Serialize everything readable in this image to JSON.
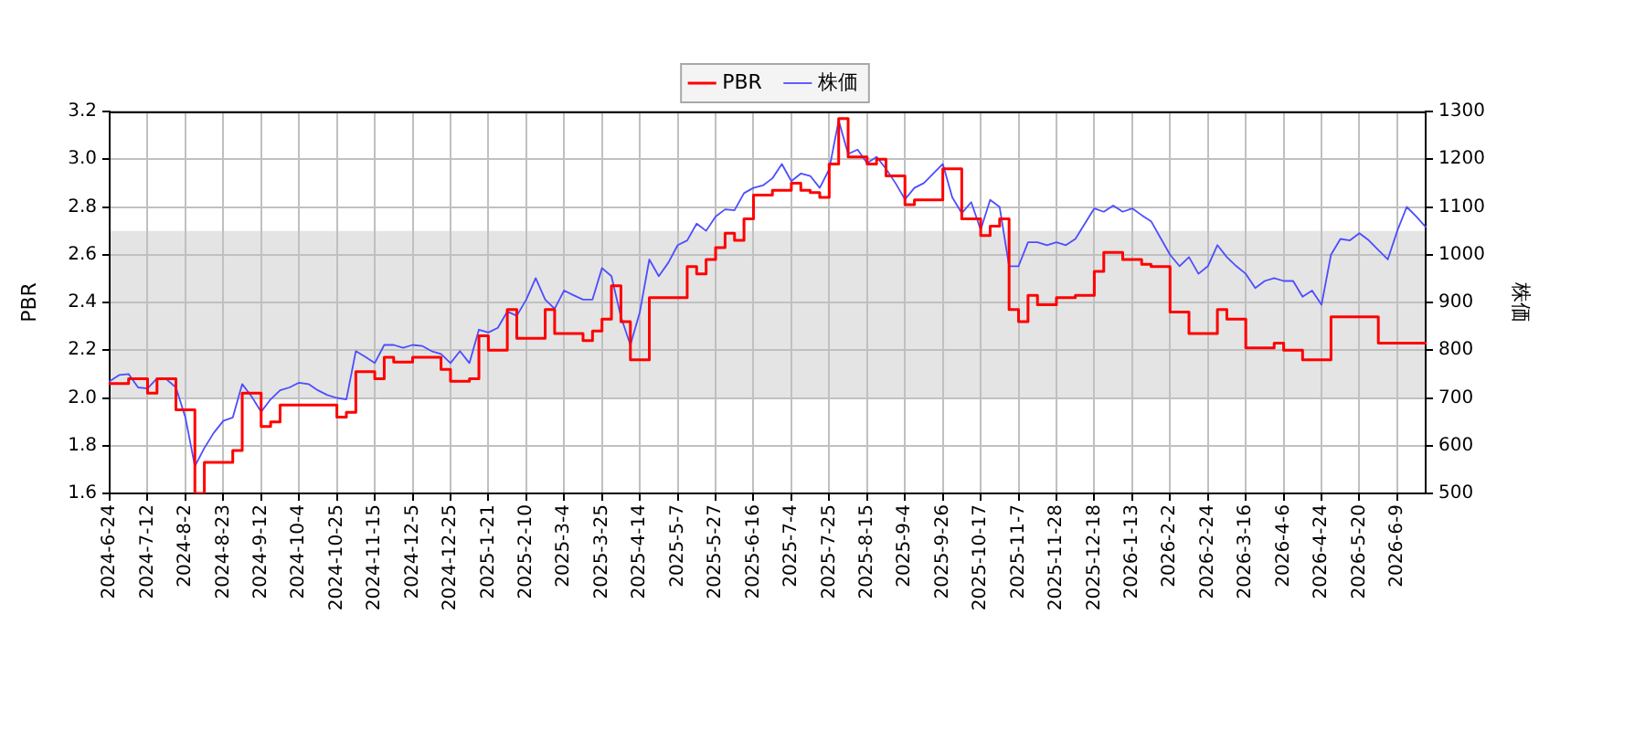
{
  "chart_data": {
    "type": "line",
    "ylabel": "PBR",
    "y2label": "株価",
    "categories": [
      "2024-6-24",
      null,
      null,
      null,
      "2024-7-12",
      null,
      null,
      null,
      "2024-8-2",
      null,
      null,
      null,
      "2024-8-23",
      null,
      null,
      null,
      "2024-9-12",
      null,
      null,
      null,
      "2024-10-4",
      null,
      null,
      null,
      "2024-10-25",
      null,
      null,
      null,
      "2024-11-15",
      null,
      null,
      null,
      "2024-12-5",
      null,
      null,
      null,
      "2024-12-25",
      null,
      null,
      null,
      "2025-1-21",
      null,
      null,
      null,
      "2025-2-10",
      null,
      null,
      null,
      "2025-3-4",
      null,
      null,
      null,
      "2025-3-25",
      null,
      null,
      null,
      "2025-4-14",
      null,
      null,
      null,
      "2025-5-7",
      null,
      null,
      null,
      "2025-5-27",
      null,
      null,
      null,
      "2025-6-16",
      null,
      null,
      null,
      "2025-7-4",
      null,
      null,
      null,
      "2025-7-25",
      null,
      null,
      null,
      "2025-8-15",
      null,
      null,
      null,
      "2025-9-4",
      null,
      null,
      null,
      "2025-9-26",
      null,
      null,
      null,
      "2025-10-17",
      null,
      null,
      null,
      "2025-11-7",
      null,
      null,
      null,
      "2025-11-28",
      null,
      null,
      null,
      "2025-12-18",
      null,
      null,
      null,
      "2026-1-13",
      null,
      null,
      null,
      "2026-2-2",
      null,
      null,
      null,
      "2026-2-24",
      null,
      null,
      null,
      "2026-3-16",
      null,
      null,
      null,
      "2026-4-6",
      null,
      null,
      null,
      "2026-4-24",
      null,
      null,
      null,
      "2026-5-20",
      null,
      null,
      null,
      "2026-6-9",
      null,
      null,
      null
    ],
    "series": [
      {
        "name": "PBR",
        "type": "step",
        "color": "#ff0000",
        "values": [
          2.06,
          2.06,
          2.08,
          2.08,
          2.02,
          2.08,
          2.08,
          1.95,
          1.95,
          1.6,
          1.73,
          1.73,
          1.73,
          1.78,
          2.02,
          2.02,
          1.88,
          1.9,
          1.97,
          1.97,
          1.97,
          1.97,
          1.97,
          1.97,
          1.92,
          1.94,
          2.11,
          2.11,
          2.08,
          2.17,
          2.15,
          2.15,
          2.17,
          2.17,
          2.17,
          2.12,
          2.07,
          2.07,
          2.08,
          2.26,
          2.2,
          2.2,
          2.37,
          2.25,
          2.25,
          2.25,
          2.37,
          2.27,
          2.27,
          2.27,
          2.24,
          2.28,
          2.33,
          2.47,
          2.32,
          2.16,
          2.16,
          2.42,
          2.42,
          2.42,
          2.42,
          2.55,
          2.52,
          2.58,
          2.63,
          2.69,
          2.66,
          2.75,
          2.85,
          2.85,
          2.87,
          2.87,
          2.9,
          2.87,
          2.86,
          2.84,
          2.98,
          3.17,
          3.01,
          3.01,
          2.98,
          3.0,
          2.93,
          2.93,
          2.81,
          2.83,
          2.83,
          2.83,
          2.96,
          2.96,
          2.75,
          2.75,
          2.68,
          2.72,
          2.75,
          2.37,
          2.32,
          2.43,
          2.39,
          2.39,
          2.42,
          2.42,
          2.43,
          2.43,
          2.53,
          2.61,
          2.61,
          2.58,
          2.58,
          2.56,
          2.55,
          2.55,
          2.36,
          2.36,
          2.27,
          2.27,
          2.27,
          2.37,
          2.33,
          2.33,
          2.21,
          2.21,
          2.21,
          2.23,
          2.2,
          2.2,
          2.16,
          2.16,
          2.16,
          2.34,
          2.34,
          2.34,
          2.34,
          2.34,
          2.23,
          2.23,
          2.23,
          2.23,
          2.23,
          2.23
        ]
      },
      {
        "name": "株価",
        "type": "line",
        "axis": "y2",
        "color": "#4d4dff",
        "values": [
          735,
          748,
          750,
          722,
          720,
          741,
          739,
          722,
          659,
          557,
          595,
          627,
          652,
          659,
          729,
          703,
          671,
          697,
          716,
          722,
          732,
          729,
          716,
          706,
          700,
          697,
          798,
          786,
          773,
          811,
          811,
          805,
          811,
          809,
          798,
          792,
          773,
          798,
          773,
          843,
          837,
          847,
          881,
          872,
          906,
          951,
          906,
          887,
          925,
          915,
          906,
          906,
          972,
          955,
          870,
          811,
          880,
          990,
          955,
          983,
          1020,
          1030,
          1065,
          1050,
          1080,
          1095,
          1093,
          1129,
          1140,
          1145,
          1160,
          1190,
          1154,
          1170,
          1165,
          1140,
          1179,
          1281,
          1211,
          1220,
          1192,
          1205,
          1180,
          1150,
          1116,
          1140,
          1150,
          1170,
          1190,
          1120,
          1087,
          1110,
          1052,
          1115,
          1100,
          976,
          976,
          1026,
          1026,
          1020,
          1026,
          1020,
          1033,
          1065,
          1097,
          1090,
          1103,
          1090,
          1097,
          1083,
          1070,
          1035,
          1000,
          976,
          995,
          960,
          976,
          1020,
          995,
          976,
          960,
          930,
          945,
          951,
          945,
          945,
          912,
          925,
          895,
          1000,
          1033,
          1030,
          1045,
          1030,
          1010,
          990,
          1050,
          1100,
          1080,
          1058
        ]
      }
    ],
    "ylim": [
      1.6,
      3.2
    ],
    "yticks": [
      1.6,
      1.8,
      {
        "value": 2.0,
        "label": "2.0"
      },
      2.2,
      2.4,
      2.6,
      2.8,
      {
        "value": 3.0,
        "label": "3.0"
      },
      3.2
    ],
    "y2lim": [
      500,
      1300
    ],
    "y2ticks": [
      500,
      600,
      700,
      800,
      900,
      1000,
      1100,
      1200,
      1300
    ],
    "bands": [
      {
        "axis": "y",
        "from": 2.0,
        "to": 2.7,
        "color": "#e4e4e4"
      }
    ],
    "grid": true,
    "legend": "top"
  }
}
